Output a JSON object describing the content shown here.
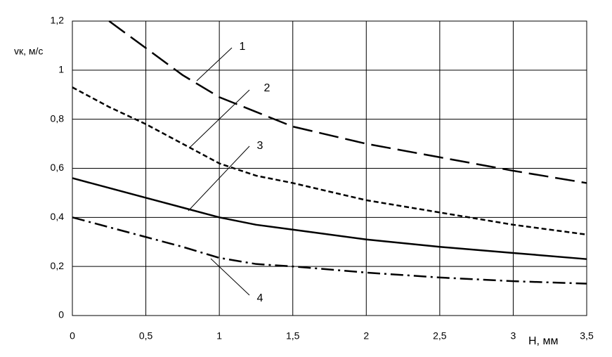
{
  "chart_data": {
    "type": "line",
    "y_label": "vк, м/с",
    "x_label": "H, мм",
    "x": [
      0,
      0.25,
      0.5,
      0.75,
      1,
      1.25,
      1.5,
      2,
      2.5,
      3,
      3.5
    ],
    "series": [
      {
        "name": "1",
        "color": "#000000",
        "dash": "long",
        "values": [
          null,
          1.2,
          1.09,
          0.98,
          0.89,
          0.83,
          0.77,
          0.7,
          0.645,
          0.59,
          0.54
        ]
      },
      {
        "name": "2",
        "color": "#000000",
        "dash": "short",
        "values": [
          0.93,
          0.85,
          0.78,
          0.7,
          0.62,
          0.57,
          0.54,
          0.47,
          0.42,
          0.37,
          0.33
        ]
      },
      {
        "name": "3",
        "color": "#000000",
        "dash": "solid",
        "values": [
          0.56,
          0.52,
          0.48,
          0.44,
          0.4,
          0.37,
          0.35,
          0.31,
          0.28,
          0.255,
          0.23
        ]
      },
      {
        "name": "4",
        "color": "#000000",
        "dash": "dashdot",
        "values": [
          0.4,
          0.36,
          0.32,
          0.28,
          0.235,
          0.21,
          0.2,
          0.175,
          0.155,
          0.14,
          0.13
        ]
      }
    ],
    "xlim": [
      0,
      3.5
    ],
    "xticks": [
      0,
      {
        "value": 0.5,
        "label": "0,5"
      },
      1,
      {
        "value": 1.5,
        "label": "1,5"
      },
      2,
      {
        "value": 2.5,
        "label": "2,5"
      },
      3,
      {
        "value": 3.5,
        "label": "3,5"
      }
    ],
    "ylim": [
      0,
      1.2
    ],
    "yticks": [
      0,
      {
        "value": 0.2,
        "label": "0,2"
      },
      {
        "value": 0.4,
        "label": "0,4"
      },
      {
        "value": 0.6,
        "label": "0,6"
      },
      {
        "value": 0.8,
        "label": "0,8"
      },
      1,
      {
        "value": 1.2,
        "label": "1,2"
      }
    ],
    "grid": true
  }
}
